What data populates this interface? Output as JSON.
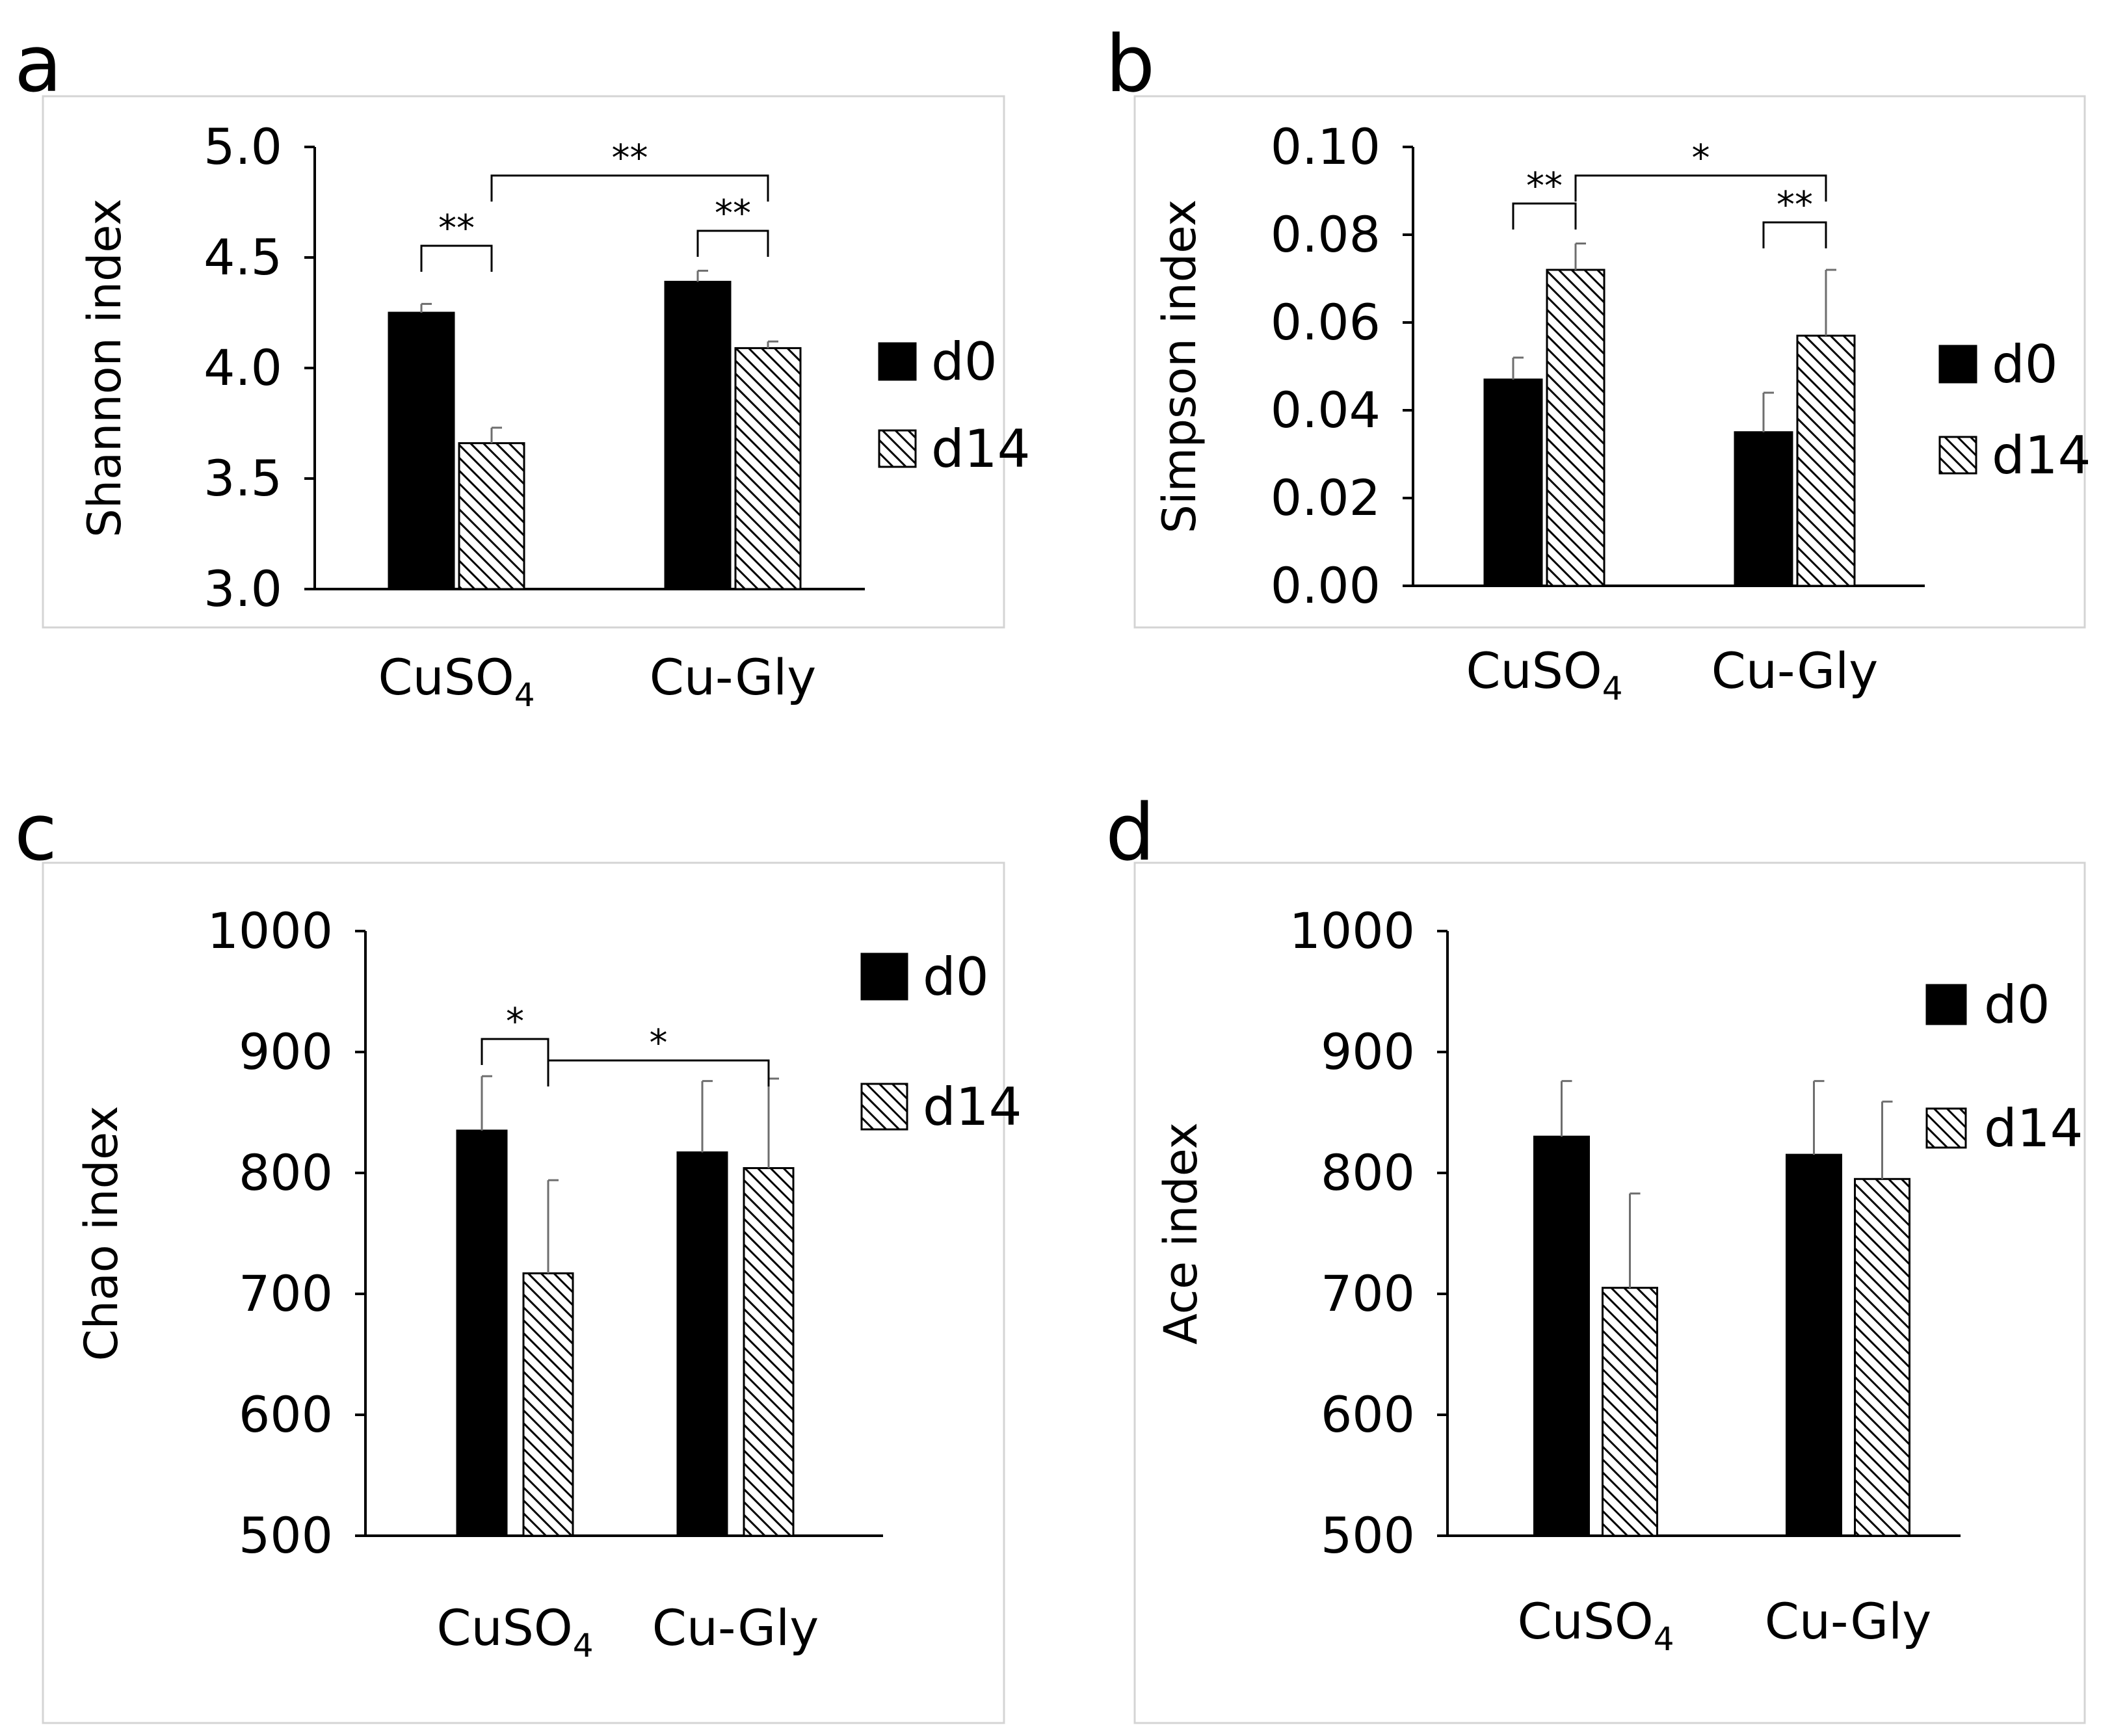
{
  "colors": {
    "d0": "#000000",
    "d14_hatch": "#000000",
    "background": "#ffffff",
    "frame": "#d4d4d4",
    "error_bar": "#6e6e6e"
  },
  "chart_data": [
    {
      "panel": "a",
      "type": "bar",
      "categories": [
        {
          "main": "CuSO",
          "sub": "4"
        },
        {
          "main": "Cu-Gly",
          "sub": ""
        }
      ],
      "series": [
        {
          "name": "d0",
          "values": [
            4.25,
            4.39
          ],
          "errors": [
            0.04,
            0.05
          ]
        },
        {
          "name": "d14",
          "values": [
            3.66,
            4.09
          ],
          "errors": [
            0.07,
            0.03
          ]
        }
      ],
      "ylabel": "Shannon index",
      "ylim": [
        3.0,
        5.0
      ],
      "yticks": [
        "3.0",
        "3.5",
        "4.0",
        "4.5",
        "5.0"
      ],
      "legend": [
        "d0",
        "d14"
      ],
      "significance": [
        {
          "from": [
            0,
            0
          ],
          "to": [
            0,
            1
          ],
          "label": "**"
        },
        {
          "from": [
            0,
            1
          ],
          "to": [
            1,
            1
          ],
          "label": "**"
        },
        {
          "from": [
            1,
            0
          ],
          "to": [
            1,
            1
          ],
          "label": "**"
        }
      ]
    },
    {
      "panel": "b",
      "type": "bar",
      "categories": [
        {
          "main": "CuSO",
          "sub": "4"
        },
        {
          "main": "Cu-Gly",
          "sub": ""
        }
      ],
      "series": [
        {
          "name": "d0",
          "values": [
            0.047,
            0.035
          ],
          "errors": [
            0.005,
            0.009
          ]
        },
        {
          "name": "d14",
          "values": [
            0.072,
            0.057
          ],
          "errors": [
            0.006,
            0.015
          ]
        }
      ],
      "ylabel": "Simpson index",
      "ylim": [
        0.0,
        0.1
      ],
      "yticks": [
        "0.00",
        "0.02",
        "0.04",
        "0.06",
        "0.08",
        "0.10"
      ],
      "legend": [
        "d0",
        "d14"
      ],
      "significance": [
        {
          "from": [
            0,
            0
          ],
          "to": [
            0,
            1
          ],
          "label": "**"
        },
        {
          "from": [
            0,
            1
          ],
          "to": [
            1,
            1
          ],
          "label": "*"
        },
        {
          "from": [
            1,
            0
          ],
          "to": [
            1,
            1
          ],
          "label": "**"
        }
      ]
    },
    {
      "panel": "c",
      "type": "bar",
      "categories": [
        {
          "main": "CuSO",
          "sub": "4"
        },
        {
          "main": "Cu-Gly",
          "sub": ""
        }
      ],
      "series": [
        {
          "name": "d0",
          "values": [
            835,
            817
          ],
          "errors": [
            45,
            59
          ]
        },
        {
          "name": "d14",
          "values": [
            717,
            804
          ],
          "errors": [
            77,
            74
          ]
        }
      ],
      "ylabel": "Chao index",
      "ylim": [
        500,
        1000
      ],
      "yticks": [
        "500",
        "600",
        "700",
        "800",
        "900",
        "1000"
      ],
      "legend": [
        "d0",
        "d14"
      ],
      "significance": [
        {
          "from": [
            0,
            0
          ],
          "to": [
            0,
            1
          ],
          "label": "*"
        },
        {
          "from": [
            0,
            1
          ],
          "to": [
            1,
            1
          ],
          "label": "*"
        }
      ]
    },
    {
      "panel": "d",
      "type": "bar",
      "categories": [
        {
          "main": "CuSO",
          "sub": "4"
        },
        {
          "main": "Cu-Gly",
          "sub": ""
        }
      ],
      "series": [
        {
          "name": "d0",
          "values": [
            830,
            815
          ],
          "errors": [
            46,
            61
          ]
        },
        {
          "name": "d14",
          "values": [
            705,
            795
          ],
          "errors": [
            78,
            64
          ]
        }
      ],
      "ylabel": "Ace index",
      "ylim": [
        500,
        1000
      ],
      "yticks": [
        "500",
        "600",
        "700",
        "800",
        "900",
        "1000"
      ],
      "legend": [
        "d0",
        "d14"
      ],
      "significance": []
    }
  ]
}
